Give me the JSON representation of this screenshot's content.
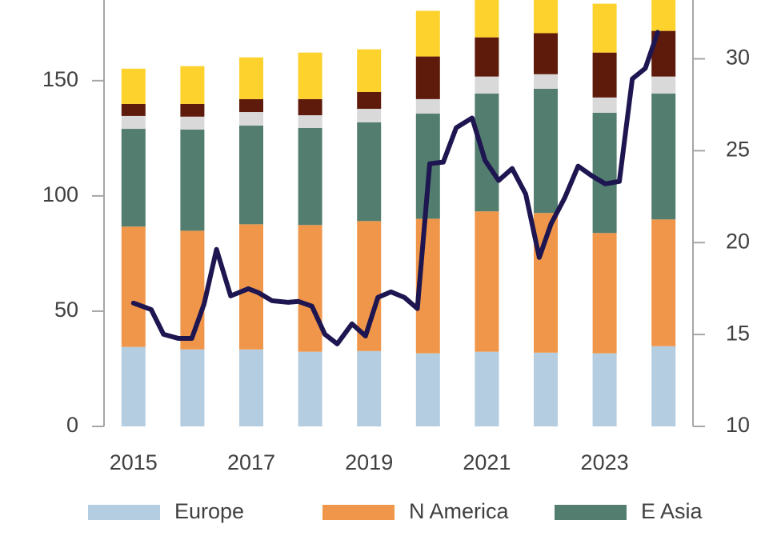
{
  "chart_data": {
    "type": "bar-line",
    "categories": [
      "2015",
      null,
      "2017",
      null,
      "2019",
      null,
      "2021",
      null,
      "2023",
      null
    ],
    "xlim": [
      2014.5,
      2024.5
    ],
    "ylim": [
      0,
      185
    ],
    "yticks": [
      0,
      50,
      100,
      150
    ],
    "y2lim": [
      10,
      33.2
    ],
    "y2ticks": [
      10,
      15,
      20,
      25,
      30
    ],
    "series": [
      {
        "name": "Europe",
        "color": "#b4cde0",
        "values": [
          34.5,
          33.4,
          33.4,
          32.4,
          32.7,
          31.7,
          32.4,
          32.0,
          31.7,
          34.8
        ]
      },
      {
        "name": "N America",
        "color": "#f0964a",
        "values": [
          52.2,
          51.5,
          54.3,
          55.0,
          56.4,
          58.4,
          60.9,
          60.6,
          52.2,
          55.0
        ]
      },
      {
        "name": "E Asia",
        "color": "#527d6f",
        "values": [
          42.4,
          43.9,
          42.8,
          42.1,
          42.8,
          45.6,
          51.1,
          53.9,
          52.2,
          54.6
        ]
      },
      {
        "color": "#d9d9d9",
        "values": [
          5.6,
          5.6,
          5.9,
          5.5,
          5.9,
          6.3,
          7.4,
          6.3,
          6.6,
          7.4
        ]
      },
      {
        "color": "#5e1b0c",
        "values": [
          5.2,
          5.5,
          5.6,
          7.0,
          7.3,
          18.5,
          17.0,
          17.8,
          19.5,
          19.8
        ]
      },
      {
        "color": "#fdd22c",
        "values": [
          15.3,
          16.4,
          18.1,
          20.2,
          18.5,
          19.8,
          18,
          16,
          21.2,
          16
        ]
      },
      {
        "type": "line",
        "axis": "y2",
        "color": "#1e1650",
        "x": [
          2015.0,
          2015.3,
          2015.51,
          2015.76,
          2015.99,
          2016.2,
          2016.41,
          2016.65,
          2016.95,
          2017.12,
          2017.35,
          2017.63,
          2017.8,
          2018.03,
          2018.25,
          2018.46,
          2018.71,
          2018.94,
          2019.15,
          2019.37,
          2019.6,
          2019.82,
          2020.03,
          2020.26,
          2020.48,
          2020.75,
          2020.97,
          2021.2,
          2021.43,
          2021.66,
          2021.89,
          2022.09,
          2022.32,
          2022.55,
          2022.78,
          2023.01,
          2023.25,
          2023.47,
          2023.69,
          2023.9
        ],
        "values": [
          16.71,
          16.36,
          15.01,
          14.79,
          14.79,
          16.67,
          19.63,
          17.1,
          17.49,
          17.28,
          16.84,
          16.75,
          16.8,
          16.54,
          15.01,
          14.49,
          15.58,
          14.92,
          17.02,
          17.32,
          17.02,
          16.41,
          24.29,
          24.38,
          26.25,
          26.78,
          24.47,
          23.38,
          24.03,
          22.64,
          19.19,
          21.02,
          22.42,
          24.16,
          23.64,
          23.2,
          23.33,
          28.91,
          29.48,
          31.44
        ]
      }
    ]
  }
}
